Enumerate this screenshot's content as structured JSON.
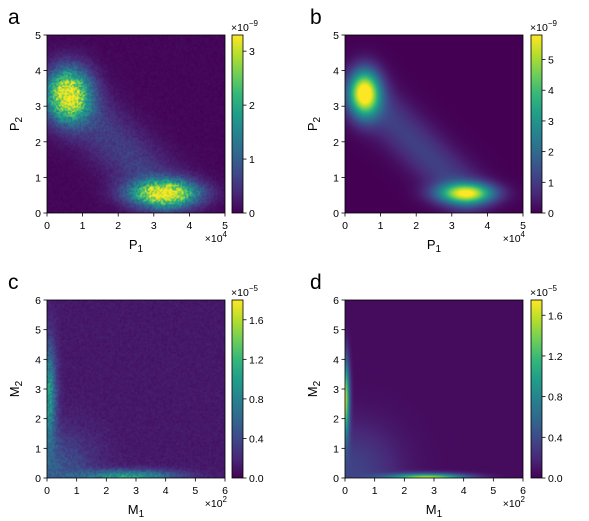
{
  "chart_data": [
    {
      "type": "heatmap",
      "panel_label": "a",
      "xlabel_main": "P",
      "xlabel_sub": "1",
      "ylabel_main": "P",
      "ylabel_sub": "2",
      "xlim": [
        0,
        5
      ],
      "ylim": [
        0,
        5
      ],
      "xticks": [
        "0",
        "1",
        "2",
        "3",
        "4",
        "5"
      ],
      "yticks": [
        "0",
        "1",
        "2",
        "3",
        "4",
        "5"
      ],
      "x_multiplier": "×10",
      "x_multiplier_exp": "4",
      "colorbar": {
        "range": [
          0,
          3.3
        ],
        "ticks": [
          0,
          1,
          2,
          3
        ],
        "tick_labels": [
          "0",
          "1",
          "2",
          "3"
        ],
        "multiplier": "×10",
        "multiplier_exp": "−9"
      },
      "colormap": [
        "#440154",
        "#482878",
        "#3e4989",
        "#31688e",
        "#26828e",
        "#1f9e89",
        "#35b779",
        "#6ece58",
        "#b5de2b",
        "#fde725"
      ],
      "noisy": true,
      "blobs": [
        {
          "x": 0.6,
          "y": 3.3,
          "sx": 0.42,
          "sy": 0.5,
          "amp": 3.0
        },
        {
          "x": 3.3,
          "y": 0.55,
          "sx": 0.65,
          "sy": 0.25,
          "amp": 3.1
        }
      ],
      "ridges": [
        {
          "x1": 0.6,
          "y1": 3.3,
          "x2": 3.3,
          "y2": 0.55,
          "width": 0.55,
          "amp": 0.55
        }
      ],
      "background": 0.05
    },
    {
      "type": "heatmap",
      "panel_label": "b",
      "xlabel_main": "P",
      "xlabel_sub": "1",
      "ylabel_main": "P",
      "ylabel_sub": "2",
      "xlim": [
        0,
        5
      ],
      "ylim": [
        0,
        5
      ],
      "xticks": [
        "0",
        "1",
        "2",
        "3",
        "4",
        "5"
      ],
      "yticks": [
        "0",
        "1",
        "2",
        "3",
        "4",
        "5"
      ],
      "x_multiplier": "×10",
      "x_multiplier_exp": "4",
      "colorbar": {
        "range": [
          0,
          5.8
        ],
        "ticks": [
          0,
          1,
          2,
          3,
          4,
          5
        ],
        "tick_labels": [
          "0",
          "1",
          "2",
          "3",
          "4",
          "5"
        ],
        "multiplier": "×10",
        "multiplier_exp": "−9"
      },
      "colormap": [
        "#440154",
        "#482878",
        "#3e4989",
        "#31688e",
        "#26828e",
        "#1f9e89",
        "#35b779",
        "#6ece58",
        "#b5de2b",
        "#fde725"
      ],
      "noisy": false,
      "blobs": [
        {
          "x": 0.55,
          "y": 3.35,
          "sx": 0.3,
          "sy": 0.45,
          "amp": 5.6
        },
        {
          "x": 3.4,
          "y": 0.55,
          "sx": 0.55,
          "sy": 0.2,
          "amp": 5.0
        }
      ],
      "ridges": [
        {
          "x1": 0.55,
          "y1": 3.35,
          "x2": 3.4,
          "y2": 0.55,
          "width": 0.45,
          "amp": 1.1
        }
      ],
      "background": 0.0
    },
    {
      "type": "heatmap",
      "panel_label": "c",
      "xlabel_main": "M",
      "xlabel_sub": "1",
      "ylabel_main": "M",
      "ylabel_sub": "2",
      "xlim": [
        0,
        6
      ],
      "ylim": [
        0,
        6
      ],
      "xticks": [
        "0",
        "1",
        "2",
        "3",
        "4",
        "5",
        "6"
      ],
      "yticks": [
        "0",
        "1",
        "2",
        "3",
        "4",
        "5",
        "6"
      ],
      "x_multiplier": "×10",
      "x_multiplier_exp": "2",
      "colorbar": {
        "range": [
          0,
          1.8
        ],
        "ticks": [
          0,
          0.4,
          0.8,
          1.2,
          1.6
        ],
        "tick_labels": [
          "0.0",
          "0.4",
          "0.8",
          "1.2",
          "1.6"
        ],
        "multiplier": "×10",
        "multiplier_exp": "−5"
      },
      "colormap": [
        "#440154",
        "#482878",
        "#3e4989",
        "#31688e",
        "#26828e",
        "#1f9e89",
        "#35b779",
        "#6ece58",
        "#b5de2b",
        "#fde725"
      ],
      "noisy": true,
      "blobs": [
        {
          "x": 0.05,
          "y": 2.8,
          "sx": 0.18,
          "sy": 1.2,
          "amp": 0.85
        },
        {
          "x": 2.8,
          "y": 0.05,
          "sx": 1.1,
          "sy": 0.15,
          "amp": 0.9
        },
        {
          "x": 0.3,
          "y": 0.3,
          "sx": 0.9,
          "sy": 0.9,
          "amp": 0.35
        }
      ],
      "ridges": [],
      "background": 0.12
    },
    {
      "type": "heatmap",
      "panel_label": "d",
      "xlabel_main": "M",
      "xlabel_sub": "1",
      "ylabel_main": "M",
      "ylabel_sub": "2",
      "xlim": [
        0,
        6
      ],
      "ylim": [
        0,
        6
      ],
      "xticks": [
        "0",
        "1",
        "2",
        "3",
        "4",
        "5",
        "6"
      ],
      "yticks": [
        "0",
        "1",
        "2",
        "3",
        "4",
        "5",
        "6"
      ],
      "x_multiplier": "×10",
      "x_multiplier_exp": "2",
      "colorbar": {
        "range": [
          0,
          1.75
        ],
        "ticks": [
          0,
          0.4,
          0.8,
          1.2,
          1.6
        ],
        "tick_labels": [
          "0.0",
          "0.4",
          "0.8",
          "1.2",
          "1.6"
        ],
        "multiplier": "×10",
        "multiplier_exp": "−5"
      },
      "colormap": [
        "#440154",
        "#482878",
        "#3e4989",
        "#31688e",
        "#26828e",
        "#1f9e89",
        "#35b779",
        "#6ece58",
        "#b5de2b",
        "#fde725"
      ],
      "noisy": false,
      "blobs": [
        {
          "x": 0.0,
          "y": 2.7,
          "sx": 0.1,
          "sy": 0.9,
          "amp": 1.55
        },
        {
          "x": 2.8,
          "y": 0.0,
          "sx": 0.9,
          "sy": 0.1,
          "amp": 1.55
        },
        {
          "x": 0.25,
          "y": 0.25,
          "sx": 1.1,
          "sy": 1.1,
          "amp": 0.3
        }
      ],
      "ridges": [],
      "background": 0.05
    }
  ]
}
